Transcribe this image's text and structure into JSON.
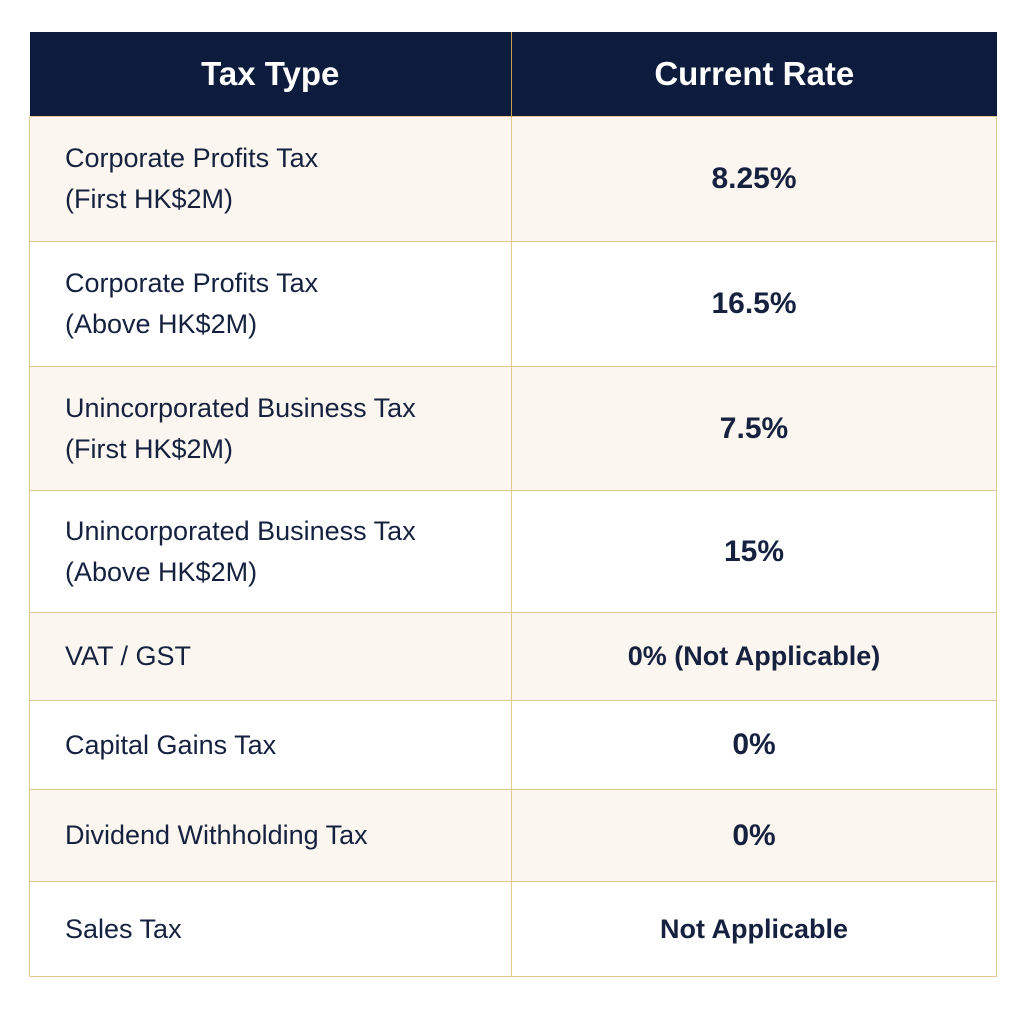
{
  "headers": {
    "tax_type": "Tax Type",
    "current_rate": "Current Rate"
  },
  "colors": {
    "header_bg": "#0d1c3d",
    "header_text": "#ffffff",
    "border": "#e2c891",
    "row_shaded": "#fbf6ef",
    "text": "#15213f"
  },
  "rows": [
    {
      "type_line1": "Corporate Profits Tax",
      "type_line2": "(First HK$2M)",
      "rate": "8.25%"
    },
    {
      "type_line1": "Corporate Profits Tax",
      "type_line2": "(Above HK$2M)",
      "rate": "16.5%"
    },
    {
      "type_line1": "Unincorporated Business Tax",
      "type_line2": "(First HK$2M)",
      "rate": "7.5%"
    },
    {
      "type_line1": "Unincorporated Business Tax",
      "type_line2": "(Above HK$2M)",
      "rate": "15%"
    },
    {
      "type_line1": "VAT / GST",
      "type_line2": "",
      "rate": "0% (Not Applicable)"
    },
    {
      "type_line1": "Capital Gains Tax",
      "type_line2": "",
      "rate": "0%"
    },
    {
      "type_line1": "Dividend Withholding Tax",
      "type_line2": "",
      "rate": "0%"
    },
    {
      "type_line1": "Sales Tax",
      "type_line2": "",
      "rate": "Not Applicable"
    }
  ]
}
